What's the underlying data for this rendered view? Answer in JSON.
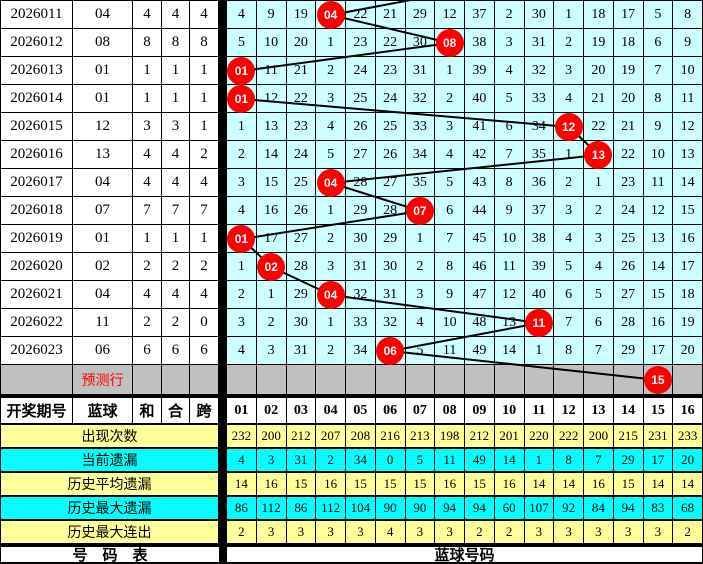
{
  "colors": {
    "cell_bg": "#CCFFFF",
    "stat_yellow": "#FFFF99",
    "stat_cyan": "#00FFFF",
    "prediction_gray": "#C0C0C0",
    "hit_red": "#FF0000",
    "blue_ball_text": "#0000FF",
    "grid_line": "#000000"
  },
  "chart_data": {
    "type": "table",
    "description_labels": {
      "period": "开奖期号",
      "blue": "蓝球",
      "sum": "和",
      "combo": "合",
      "span": "跨",
      "prediction": "预测行",
      "footer_left": "号　码　表",
      "footer_right": "蓝球号码"
    },
    "columns": [
      "01",
      "02",
      "03",
      "04",
      "05",
      "06",
      "07",
      "08",
      "09",
      "10",
      "11",
      "12",
      "13",
      "14",
      "15",
      "16"
    ],
    "rows": [
      {
        "period": "2026011",
        "blue": "04",
        "sum": "4",
        "combo": "4",
        "span": "4",
        "hit": 3,
        "cells": [
          "4",
          "9",
          "19",
          "04",
          "22",
          "21",
          "29",
          "12",
          "37",
          "2",
          "30",
          "1",
          "18",
          "17",
          "5",
          "8"
        ]
      },
      {
        "period": "2026012",
        "blue": "08",
        "sum": "8",
        "combo": "8",
        "span": "8",
        "hit": 7,
        "cells": [
          "5",
          "10",
          "20",
          "1",
          "23",
          "22",
          "30",
          "08",
          "38",
          "3",
          "31",
          "2",
          "19",
          "18",
          "6",
          "9"
        ]
      },
      {
        "period": "2026013",
        "blue": "01",
        "sum": "1",
        "combo": "1",
        "span": "1",
        "hit": 0,
        "cells": [
          "01",
          "11",
          "21",
          "2",
          "24",
          "23",
          "31",
          "1",
          "39",
          "4",
          "32",
          "3",
          "20",
          "19",
          "7",
          "10"
        ]
      },
      {
        "period": "2026014",
        "blue": "01",
        "sum": "1",
        "combo": "1",
        "span": "1",
        "hit": 0,
        "cells": [
          "01",
          "12",
          "22",
          "3",
          "25",
          "24",
          "32",
          "2",
          "40",
          "5",
          "33",
          "4",
          "21",
          "20",
          "8",
          "11"
        ]
      },
      {
        "period": "2026015",
        "blue": "12",
        "sum": "3",
        "combo": "3",
        "span": "1",
        "hit": 11,
        "cells": [
          "1",
          "13",
          "23",
          "4",
          "26",
          "25",
          "33",
          "3",
          "41",
          "6",
          "34",
          "12",
          "22",
          "21",
          "9",
          "12"
        ]
      },
      {
        "period": "2026016",
        "blue": "13",
        "sum": "4",
        "combo": "4",
        "span": "2",
        "hit": 12,
        "cells": [
          "2",
          "14",
          "24",
          "5",
          "27",
          "26",
          "34",
          "4",
          "42",
          "7",
          "35",
          "1",
          "13",
          "22",
          "10",
          "13"
        ]
      },
      {
        "period": "2026017",
        "blue": "04",
        "sum": "4",
        "combo": "4",
        "span": "4",
        "hit": 3,
        "cells": [
          "3",
          "15",
          "25",
          "04",
          "28",
          "27",
          "35",
          "5",
          "43",
          "8",
          "36",
          "2",
          "1",
          "23",
          "11",
          "14"
        ]
      },
      {
        "period": "2026018",
        "blue": "07",
        "sum": "7",
        "combo": "7",
        "span": "7",
        "hit": 6,
        "cells": [
          "4",
          "16",
          "26",
          "1",
          "29",
          "28",
          "07",
          "6",
          "44",
          "9",
          "37",
          "3",
          "2",
          "24",
          "12",
          "15"
        ]
      },
      {
        "period": "2026019",
        "blue": "01",
        "sum": "1",
        "combo": "1",
        "span": "1",
        "hit": 0,
        "cells": [
          "01",
          "17",
          "27",
          "2",
          "30",
          "29",
          "1",
          "7",
          "45",
          "10",
          "38",
          "4",
          "3",
          "25",
          "13",
          "16"
        ]
      },
      {
        "period": "2026020",
        "blue": "02",
        "sum": "2",
        "combo": "2",
        "span": "2",
        "hit": 1,
        "cells": [
          "1",
          "02",
          "28",
          "3",
          "31",
          "30",
          "2",
          "8",
          "46",
          "11",
          "39",
          "5",
          "4",
          "26",
          "14",
          "17"
        ]
      },
      {
        "period": "2026021",
        "blue": "04",
        "sum": "4",
        "combo": "4",
        "span": "4",
        "hit": 3,
        "cells": [
          "2",
          "1",
          "29",
          "04",
          "32",
          "31",
          "3",
          "9",
          "47",
          "12",
          "40",
          "6",
          "5",
          "27",
          "15",
          "18"
        ]
      },
      {
        "period": "2026022",
        "blue": "11",
        "sum": "2",
        "combo": "2",
        "span": "0",
        "hit": 10,
        "cells": [
          "3",
          "2",
          "30",
          "1",
          "33",
          "32",
          "4",
          "10",
          "48",
          "13",
          "11",
          "7",
          "6",
          "28",
          "16",
          "19"
        ]
      },
      {
        "period": "2026023",
        "blue": "06",
        "sum": "6",
        "combo": "6",
        "span": "6",
        "hit": 5,
        "cells": [
          "4",
          "3",
          "31",
          "2",
          "34",
          "06",
          "5",
          "11",
          "49",
          "14",
          "1",
          "8",
          "7",
          "29",
          "17",
          "20"
        ]
      }
    ],
    "prediction": {
      "label": "预测行",
      "hit": 14,
      "hit_label": "15"
    },
    "incoming_line_from_column": 9,
    "stats": [
      {
        "label": "出现次数",
        "bg": "yellow",
        "values": [
          "232",
          "200",
          "212",
          "207",
          "208",
          "216",
          "213",
          "198",
          "212",
          "201",
          "220",
          "222",
          "200",
          "215",
          "231",
          "233"
        ]
      },
      {
        "label": "当前遗漏",
        "bg": "cyan",
        "values": [
          "4",
          "3",
          "31",
          "2",
          "34",
          "0",
          "5",
          "11",
          "49",
          "14",
          "1",
          "8",
          "7",
          "29",
          "17",
          "20"
        ]
      },
      {
        "label": "历史平均遗漏",
        "bg": "yellow",
        "values": [
          "14",
          "16",
          "15",
          "16",
          "15",
          "15",
          "15",
          "16",
          "15",
          "16",
          "14",
          "14",
          "16",
          "15",
          "14",
          "14"
        ]
      },
      {
        "label": "历史最大遗漏",
        "bg": "cyan",
        "values": [
          "86",
          "112",
          "86",
          "112",
          "104",
          "90",
          "90",
          "94",
          "94",
          "60",
          "107",
          "92",
          "84",
          "94",
          "83",
          "68"
        ]
      },
      {
        "label": "历史最大连出",
        "bg": "yellow",
        "values": [
          "2",
          "3",
          "3",
          "3",
          "3",
          "4",
          "3",
          "3",
          "2",
          "2",
          "3",
          "3",
          "3",
          "3",
          "3",
          "2"
        ]
      }
    ]
  }
}
